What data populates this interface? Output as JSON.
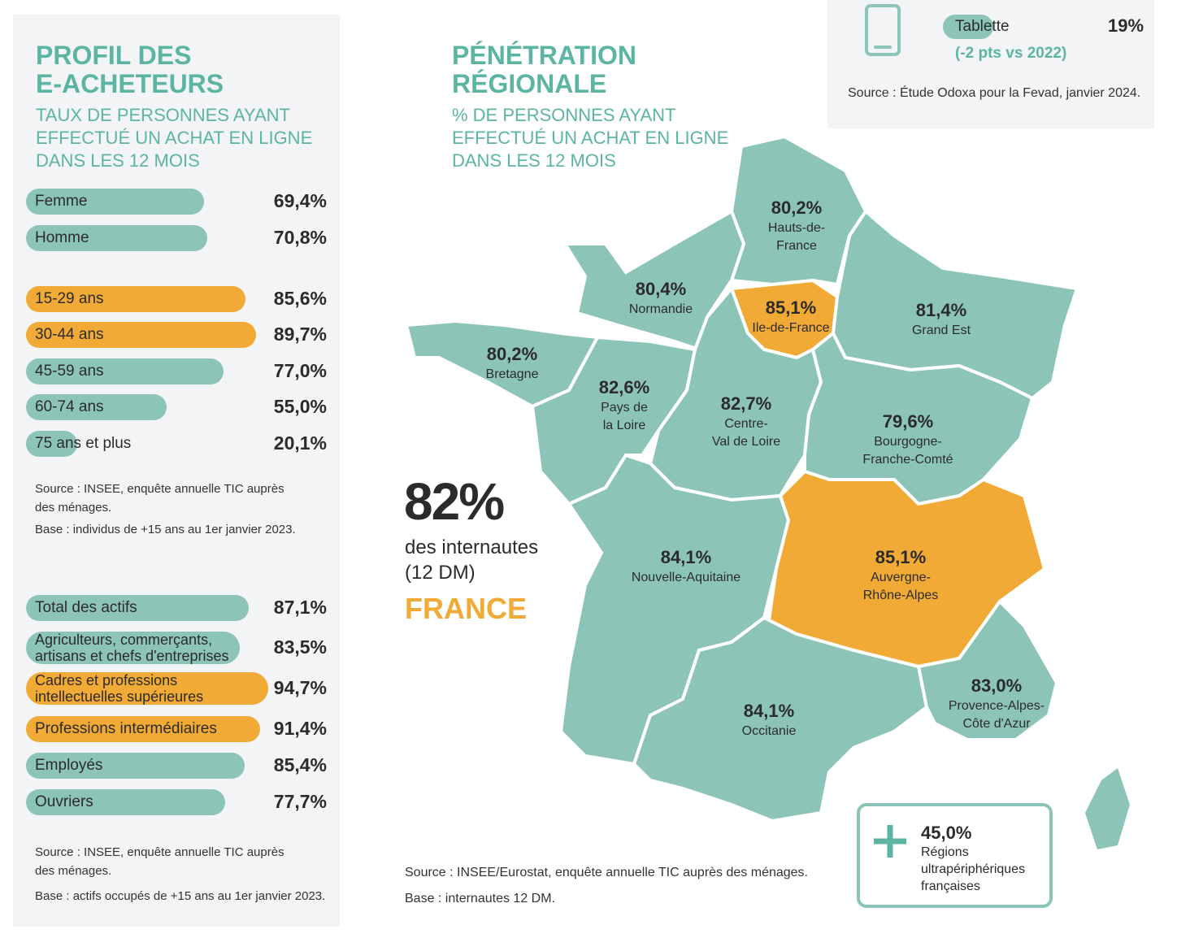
{
  "profile": {
    "title": [
      "PROFIL DES",
      "E-ACHETEURS"
    ],
    "subtitle": [
      "TAUX DE PERSONNES AYANT",
      "EFFECTUÉ UN ACHAT EN LIGNE",
      "DANS LES 12 MOIS"
    ],
    "groups": [
      {
        "rows": [
          {
            "label": "Femme",
            "value": 69.4,
            "value_label": "69,4%",
            "highlight": false
          },
          {
            "label": "Homme",
            "value": 70.8,
            "value_label": "70,8%",
            "highlight": false
          }
        ]
      },
      {
        "rows": [
          {
            "label": "15-29 ans",
            "value": 85.6,
            "value_label": "85,6%",
            "highlight": true
          },
          {
            "label": "30-44 ans",
            "value": 89.7,
            "value_label": "89,7%",
            "highlight": true
          },
          {
            "label": "45-59 ans",
            "value": 77.0,
            "value_label": "77,0%",
            "highlight": false
          },
          {
            "label": "60-74 ans",
            "value": 55.0,
            "value_label": "55,0%",
            "highlight": false
          },
          {
            "label": "75 ans et plus",
            "value": 20.1,
            "value_label": "20,1%",
            "highlight": false
          }
        ],
        "source": "Source : INSEE, enquête annuelle TIC auprès\ndes ménages.",
        "base": "Base : individus de +15 ans au 1er janvier 2023."
      },
      {
        "rows": [
          {
            "label": "Total des actifs",
            "value": 87.1,
            "value_label": "87,1%",
            "highlight": false
          },
          {
            "label": "Agriculteurs, commerçants,\nartisans et chefs d'entreprises",
            "value": 83.5,
            "value_label": "83,5%",
            "highlight": false
          },
          {
            "label": "Cadres et professions\nintellectuelles supérieures",
            "value": 94.7,
            "value_label": "94,7%",
            "highlight": true
          },
          {
            "label": "Professions intermédiaires",
            "value": 91.4,
            "value_label": "91,4%",
            "highlight": true
          },
          {
            "label": "Employés",
            "value": 85.4,
            "value_label": "85,4%",
            "highlight": false
          },
          {
            "label": "Ouvriers",
            "value": 77.7,
            "value_label": "77,7%",
            "highlight": false
          }
        ],
        "source": "Source : INSEE, enquête annuelle TIC auprès\ndes ménages.",
        "base": "Base : actifs occupés de +15 ans au 1er janvier 2023."
      }
    ]
  },
  "regional": {
    "title": [
      "PÉNÉTRATION",
      "RÉGIONALE"
    ],
    "subtitle": [
      "% DE PERSONNES AYANT",
      "EFFECTUÉ UN ACHAT EN LIGNE",
      "DANS LES 12 MOIS"
    ],
    "regions": [
      {
        "name": [
          "Hauts-de-",
          "France"
        ],
        "value": 80.2,
        "value_label": "80,2%",
        "highlight": false
      },
      {
        "name": [
          "Normandie"
        ],
        "value": 80.4,
        "value_label": "80,4%",
        "highlight": false
      },
      {
        "name": [
          "Ile-de-France"
        ],
        "value": 85.1,
        "value_label": "85,1%",
        "highlight": true
      },
      {
        "name": [
          "Grand Est"
        ],
        "value": 81.4,
        "value_label": "81,4%",
        "highlight": false
      },
      {
        "name": [
          "Bretagne"
        ],
        "value": 80.2,
        "value_label": "80,2%",
        "highlight": false
      },
      {
        "name": [
          "Pays de",
          "la Loire"
        ],
        "value": 82.6,
        "value_label": "82,6%",
        "highlight": false
      },
      {
        "name": [
          "Centre-",
          "Val de Loire"
        ],
        "value": 82.7,
        "value_label": "82,7%",
        "highlight": false
      },
      {
        "name": [
          "Bourgogne-",
          "Franche-Comté"
        ],
        "value": 79.6,
        "value_label": "79,6%",
        "highlight": false
      },
      {
        "name": [
          "Nouvelle-Aquitaine"
        ],
        "value": 84.1,
        "value_label": "84,1%",
        "highlight": false
      },
      {
        "name": [
          "Auvergne-",
          "Rhône-Alpes"
        ],
        "value": 85.1,
        "value_label": "85,1%",
        "highlight": true
      },
      {
        "name": [
          "Occitanie"
        ],
        "value": 84.1,
        "value_label": "84,1%",
        "highlight": false
      },
      {
        "name": [
          "Provence-Alpes-",
          "Côte d'Azur"
        ],
        "value": 83.0,
        "value_label": "83,0%",
        "highlight": false
      }
    ],
    "france": {
      "value": 82,
      "value_label": "82%",
      "text": [
        "des internautes",
        "(12 DM)"
      ],
      "name": "FRANCE"
    },
    "overseas": {
      "value": 45.0,
      "value_label": "45,0%",
      "text": [
        "Régions",
        "ultrapériphériques",
        "françaises"
      ]
    },
    "source": "Source : INSEE/Eurostat, enquête annuelle TIC auprès des ménages.",
    "base": "Base : internautes 12 DM."
  },
  "device": {
    "label": "Tablette",
    "value": 19,
    "value_label": "19%",
    "change": "(-2 pts vs 2022)",
    "source": "Source : Étude Odoxa pour la Fevad, janvier 2024."
  }
}
